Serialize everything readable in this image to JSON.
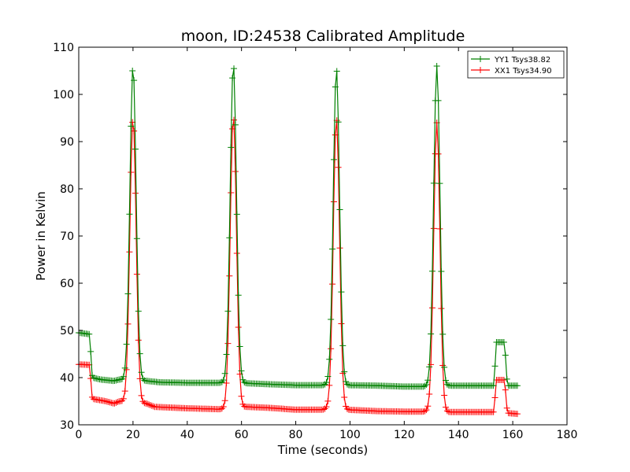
{
  "chart_data": {
    "type": "line",
    "title": "moon, ID:24538 Calibrated Amplitude",
    "xlabel": "Time (seconds)",
    "ylabel": "Power in Kelvin",
    "xlim": [
      0,
      180
    ],
    "ylim": [
      30,
      110
    ],
    "xticks": [
      "0",
      "20",
      "40",
      "60",
      "80",
      "100",
      "120",
      "140",
      "160",
      "180"
    ],
    "yticks": [
      "30",
      "40",
      "50",
      "60",
      "70",
      "80",
      "90",
      "100",
      "110"
    ],
    "grid": false,
    "legend_position": "top-right",
    "peaks_at": [
      20,
      57,
      95,
      132
    ],
    "series": [
      {
        "name": "YY1 Tsys38.82",
        "color": "#008000",
        "baseline": [
          [
            0,
            49.5
          ],
          [
            4,
            49.2
          ],
          [
            5,
            40
          ],
          [
            8,
            39.6
          ],
          [
            13,
            39.3
          ],
          [
            15,
            39.6
          ],
          [
            25,
            39.3
          ],
          [
            30,
            39
          ],
          [
            40,
            38.9
          ],
          [
            52,
            38.9
          ],
          [
            55,
            39.2
          ],
          [
            62,
            38.8
          ],
          [
            70,
            38.6
          ],
          [
            80,
            38.4
          ],
          [
            90,
            38.4
          ],
          [
            92,
            38.7
          ],
          [
            99,
            38.4
          ],
          [
            110,
            38.3
          ],
          [
            120,
            38.1
          ],
          [
            127,
            38.1
          ],
          [
            129,
            38.4
          ],
          [
            136,
            38.3
          ],
          [
            145,
            38.3
          ],
          [
            153,
            38.3
          ],
          [
            154,
            47.5
          ],
          [
            157,
            47.5
          ],
          [
            158,
            38.3
          ],
          [
            162,
            38.3
          ]
        ],
        "peaks": [
          106,
          106.5,
          105.5,
          106
        ]
      },
      {
        "name": "XX1 Tsys34.90",
        "color": "#ff0000",
        "baseline": [
          [
            0,
            42.8
          ],
          [
            4,
            42.7
          ],
          [
            5,
            35.5
          ],
          [
            10,
            35
          ],
          [
            13,
            34.5
          ],
          [
            15,
            35
          ],
          [
            25,
            34.5
          ],
          [
            28,
            33.8
          ],
          [
            40,
            33.5
          ],
          [
            52,
            33.3
          ],
          [
            55,
            33.6
          ],
          [
            62,
            33.8
          ],
          [
            70,
            33.6
          ],
          [
            80,
            33.2
          ],
          [
            90,
            33.2
          ],
          [
            92,
            33.6
          ],
          [
            99,
            33.2
          ],
          [
            110,
            32.9
          ],
          [
            120,
            32.8
          ],
          [
            127,
            32.8
          ],
          [
            129,
            33
          ],
          [
            136,
            32.7
          ],
          [
            145,
            32.7
          ],
          [
            153,
            32.7
          ],
          [
            154,
            39.5
          ],
          [
            157,
            39.5
          ],
          [
            158,
            32.5
          ],
          [
            162,
            32.3
          ]
        ],
        "peaks": [
          95,
          95.5,
          95,
          94
        ]
      }
    ]
  }
}
